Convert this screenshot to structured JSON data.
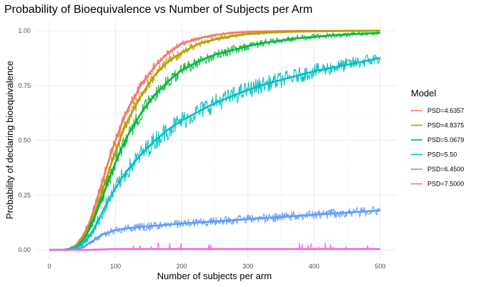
{
  "chart_data": {
    "type": "line",
    "title": "Probability of Bioequivalence vs Number of Subjects per Arm",
    "xlabel": "Number of subjects per arm",
    "ylabel": "Probability of declaring bioequivalence",
    "xlim": [
      0,
      500
    ],
    "ylim": [
      0,
      1
    ],
    "x_ticks": [
      "0",
      "100",
      "200",
      "300",
      "400",
      "500"
    ],
    "y_ticks": [
      "0.00",
      "0.25",
      "0.50",
      "0.75",
      "1.00"
    ],
    "grid": true,
    "legend": {
      "title": "Model",
      "position": "right"
    },
    "x": [
      0,
      20,
      30,
      40,
      50,
      60,
      70,
      80,
      90,
      100,
      110,
      120,
      140,
      160,
      180,
      200,
      225,
      250,
      275,
      300,
      325,
      350,
      375,
      400,
      425,
      450,
      475,
      500
    ],
    "series": [
      {
        "name": "PSD=4.6357",
        "color": "#f8766d",
        "values": [
          0,
          0,
          0.005,
          0.02,
          0.06,
          0.12,
          0.21,
          0.31,
          0.41,
          0.5,
          0.58,
          0.65,
          0.76,
          0.84,
          0.9,
          0.94,
          0.965,
          0.98,
          0.99,
          0.995,
          0.997,
          0.998,
          0.999,
          0.999,
          0.999,
          1.0,
          1.0,
          1.0
        ]
      },
      {
        "name": "PSD=4.8375",
        "color": "#b79f00",
        "values": [
          0,
          0,
          0.004,
          0.015,
          0.05,
          0.1,
          0.18,
          0.27,
          0.36,
          0.45,
          0.53,
          0.6,
          0.71,
          0.8,
          0.86,
          0.9,
          0.94,
          0.96,
          0.975,
          0.985,
          0.99,
          0.994,
          0.996,
          0.997,
          0.998,
          0.999,
          0.999,
          1.0
        ]
      },
      {
        "name": "PSD=5.0679",
        "color": "#00ba38",
        "values": [
          0,
          0,
          0.003,
          0.012,
          0.04,
          0.09,
          0.16,
          0.24,
          0.32,
          0.4,
          0.47,
          0.53,
          0.63,
          0.71,
          0.77,
          0.82,
          0.86,
          0.89,
          0.91,
          0.93,
          0.945,
          0.955,
          0.965,
          0.972,
          0.978,
          0.983,
          0.987,
          0.99
        ]
      },
      {
        "name": "PSD=5.50",
        "color": "#00bfc4",
        "values": [
          0,
          0,
          0.002,
          0.008,
          0.025,
          0.06,
          0.11,
          0.17,
          0.23,
          0.28,
          0.33,
          0.37,
          0.44,
          0.5,
          0.55,
          0.59,
          0.63,
          0.67,
          0.7,
          0.73,
          0.755,
          0.775,
          0.795,
          0.815,
          0.83,
          0.845,
          0.86,
          0.875
        ]
      },
      {
        "name": "PSD=6.4500",
        "color": "#619cff",
        "values": [
          0,
          0,
          0,
          0.002,
          0.01,
          0.03,
          0.05,
          0.07,
          0.08,
          0.09,
          0.095,
          0.1,
          0.105,
          0.11,
          0.115,
          0.12,
          0.125,
          0.13,
          0.135,
          0.14,
          0.145,
          0.15,
          0.155,
          0.16,
          0.165,
          0.17,
          0.175,
          0.18
        ]
      },
      {
        "name": "PSD=7.5000",
        "color": "#f564e3",
        "values": [
          0,
          0,
          0,
          0,
          0,
          0,
          0.001,
          0.002,
          0.003,
          0.004,
          0.004,
          0.004,
          0.004,
          0.004,
          0.004,
          0.004,
          0.004,
          0.004,
          0.004,
          0.004,
          0.004,
          0.004,
          0.004,
          0.004,
          0.004,
          0.004,
          0.004,
          0.004
        ]
      }
    ]
  }
}
